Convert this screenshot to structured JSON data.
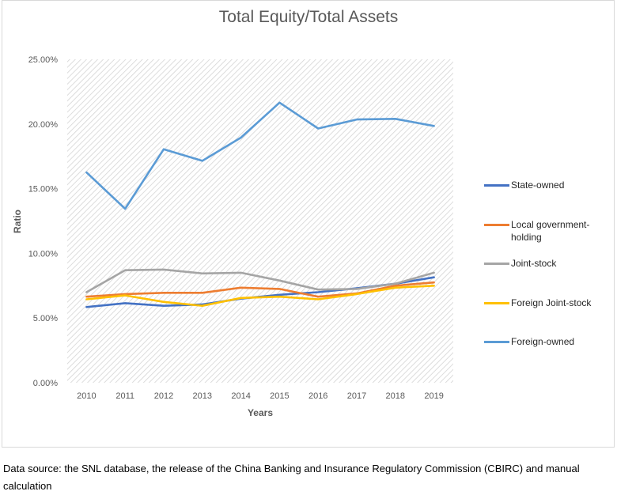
{
  "chart_data": {
    "type": "line",
    "title": "Total Equity/Total Assets",
    "xlabel": "Years",
    "ylabel": "Ratio",
    "x": [
      "2010",
      "2011",
      "2012",
      "2013",
      "2014",
      "2015",
      "2016",
      "2017",
      "2018",
      "2019"
    ],
    "y_ticks": [
      "0.00%",
      "5.00%",
      "10.00%",
      "15.00%",
      "20.00%",
      "25.00%"
    ],
    "ylim": [
      0,
      25
    ],
    "grid": "hatched plot area",
    "legend_position": "right",
    "series": [
      {
        "name": "State-owned",
        "color": "#4472c4",
        "values": [
          5.85,
          6.15,
          5.95,
          6.05,
          6.5,
          6.8,
          7.0,
          7.3,
          7.65,
          8.15
        ]
      },
      {
        "name": "Local government-holding",
        "color": "#ed7d31",
        "values": [
          6.65,
          6.85,
          6.95,
          6.95,
          7.35,
          7.25,
          6.65,
          6.9,
          7.5,
          7.75
        ]
      },
      {
        "name": "Joint-stock",
        "color": "#a5a5a5",
        "values": [
          7.0,
          8.7,
          8.75,
          8.45,
          8.5,
          7.9,
          7.2,
          7.25,
          7.65,
          8.5
        ]
      },
      {
        "name": "Foreign Joint-stock",
        "color": "#ffc000",
        "values": [
          6.45,
          6.75,
          6.25,
          5.95,
          6.55,
          6.65,
          6.45,
          6.85,
          7.35,
          7.5
        ]
      },
      {
        "name": "Foreign-owned",
        "color": "#5b9bd5",
        "values": [
          16.25,
          13.45,
          18.05,
          17.15,
          18.95,
          21.65,
          19.65,
          20.35,
          20.4,
          19.85
        ]
      }
    ]
  },
  "caption": "Data source: the SNL database, the release of the China Banking and Insurance Regulatory Commission (CBIRC) and manual calculation"
}
